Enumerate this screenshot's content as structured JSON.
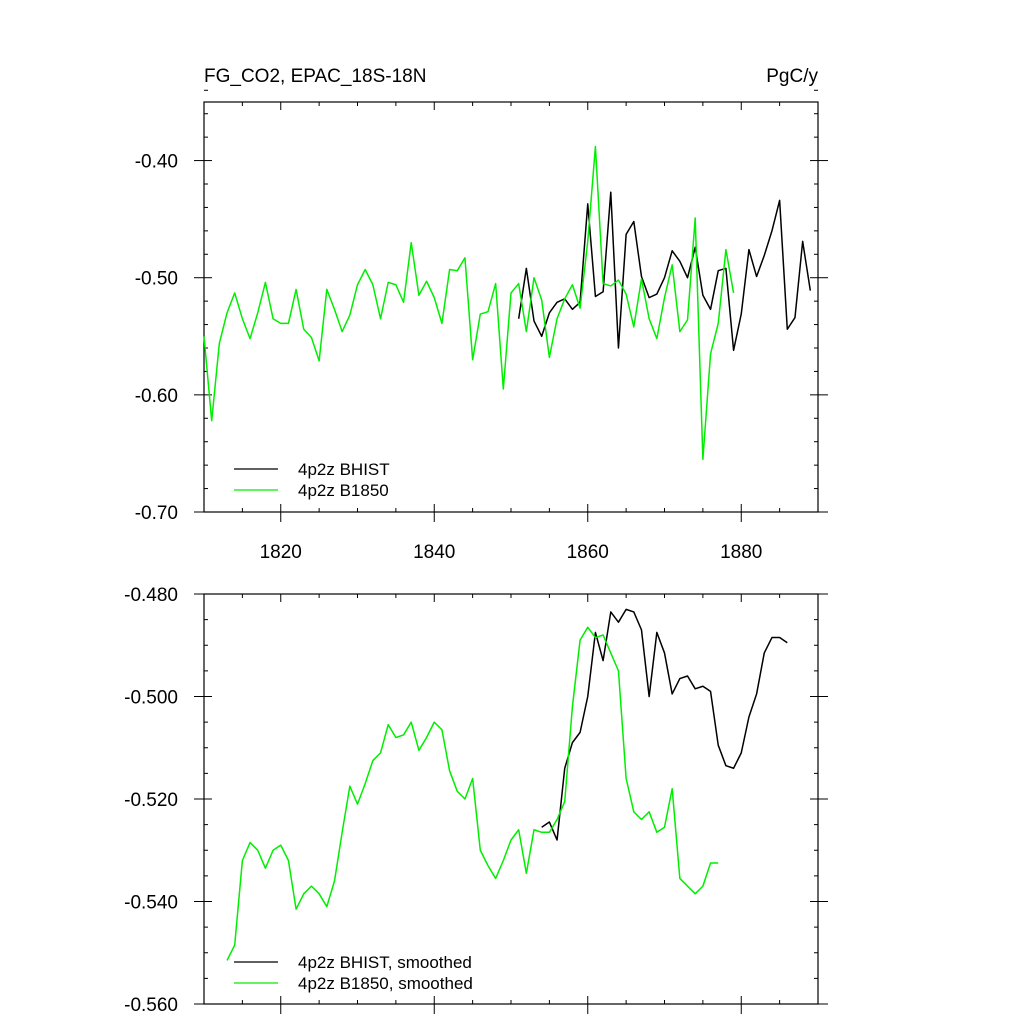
{
  "chart_data": [
    {
      "type": "line",
      "title_left": "FG_CO2, EPAC_18S-18N",
      "title_right": "PgC/y",
      "xlabel": "",
      "ylabel": "",
      "xlim": [
        1810,
        1890
      ],
      "ylim": [
        -0.7,
        -0.35
      ],
      "xticks": [
        1820,
        1840,
        1860,
        1880
      ],
      "xtick_labels": [
        "1820",
        "1840",
        "1860",
        "1880"
      ],
      "yticks": [
        -0.4,
        -0.5,
        -0.6,
        -0.7
      ],
      "ytick_labels": [
        "-0.40",
        "-0.50",
        "-0.60",
        "-0.70"
      ],
      "grid": false,
      "legend_position": "bottom-left",
      "series": [
        {
          "name": "4p2z BHIST",
          "color": "#000000",
          "x": [
            1851,
            1852,
            1853,
            1854,
            1855,
            1856,
            1857,
            1858,
            1859,
            1860,
            1861,
            1862,
            1863,
            1864,
            1865,
            1866,
            1867,
            1868,
            1869,
            1870,
            1871,
            1872,
            1873,
            1874,
            1875,
            1876,
            1877,
            1878,
            1879,
            1880,
            1881,
            1882,
            1883,
            1884,
            1885,
            1886,
            1887,
            1888,
            1889
          ],
          "y": [
            -0.535,
            -0.492,
            -0.537,
            -0.55,
            -0.53,
            -0.521,
            -0.518,
            -0.527,
            -0.521,
            -0.437,
            -0.516,
            -0.512,
            -0.427,
            -0.56,
            -0.463,
            -0.452,
            -0.499,
            -0.517,
            -0.514,
            -0.5,
            -0.477,
            -0.486,
            -0.5,
            -0.474,
            -0.515,
            -0.527,
            -0.494,
            -0.492,
            -0.562,
            -0.531,
            -0.476,
            -0.499,
            -0.481,
            -0.46,
            -0.434,
            -0.544,
            -0.534,
            -0.469,
            -0.511
          ]
        },
        {
          "name": "4p2z B1850",
          "color": "#00ee00",
          "x": [
            1810,
            1811,
            1812,
            1813,
            1814,
            1815,
            1816,
            1817,
            1818,
            1819,
            1820,
            1821,
            1822,
            1823,
            1824,
            1825,
            1826,
            1827,
            1828,
            1829,
            1830,
            1831,
            1832,
            1833,
            1834,
            1835,
            1836,
            1837,
            1838,
            1839,
            1840,
            1841,
            1842,
            1843,
            1844,
            1845,
            1846,
            1847,
            1848,
            1849,
            1850,
            1851,
            1852,
            1853,
            1854,
            1855,
            1856,
            1857,
            1858,
            1859,
            1860,
            1861,
            1862,
            1863,
            1864,
            1865,
            1866,
            1867,
            1868,
            1869,
            1870,
            1871,
            1872,
            1873,
            1874,
            1875,
            1876,
            1877,
            1878,
            1879
          ],
          "y": [
            -0.55,
            -0.622,
            -0.556,
            -0.53,
            -0.513,
            -0.535,
            -0.552,
            -0.53,
            -0.504,
            -0.535,
            -0.539,
            -0.539,
            -0.51,
            -0.544,
            -0.551,
            -0.571,
            -0.51,
            -0.527,
            -0.546,
            -0.532,
            -0.506,
            -0.493,
            -0.506,
            -0.535,
            -0.504,
            -0.506,
            -0.521,
            -0.47,
            -0.515,
            -0.503,
            -0.517,
            -0.539,
            -0.493,
            -0.494,
            -0.483,
            -0.57,
            -0.531,
            -0.529,
            -0.505,
            -0.595,
            -0.513,
            -0.505,
            -0.546,
            -0.5,
            -0.519,
            -0.568,
            -0.535,
            -0.518,
            -0.506,
            -0.526,
            -0.469,
            -0.388,
            -0.505,
            -0.507,
            -0.502,
            -0.514,
            -0.542,
            -0.501,
            -0.535,
            -0.552,
            -0.517,
            -0.489,
            -0.546,
            -0.536,
            -0.449,
            -0.655,
            -0.565,
            -0.539,
            -0.476,
            -0.513
          ]
        }
      ]
    },
    {
      "type": "line",
      "title": "",
      "xlabel": "",
      "ylabel": "",
      "xlim": [
        1810,
        1890
      ],
      "ylim": [
        -0.56,
        -0.48
      ],
      "xticks": [
        1820,
        1840,
        1860,
        1880
      ],
      "yticks": [
        -0.48,
        -0.5,
        -0.52,
        -0.54,
        -0.56
      ],
      "ytick_labels": [
        "-0.480",
        "-0.500",
        "-0.520",
        "-0.540",
        "-0.560"
      ],
      "grid": false,
      "legend_position": "bottom-left",
      "series": [
        {
          "name": "4p2z BHIST, smoothed",
          "color": "#000000",
          "x": [
            1854,
            1855,
            1856,
            1857,
            1858,
            1859,
            1860,
            1861,
            1862,
            1863,
            1864,
            1865,
            1866,
            1867,
            1868,
            1869,
            1870,
            1871,
            1872,
            1873,
            1874,
            1875,
            1876,
            1877,
            1878,
            1879,
            1880,
            1881,
            1882,
            1883,
            1884,
            1885,
            1886
          ],
          "y": [
            -0.5255,
            -0.5245,
            -0.528,
            -0.514,
            -0.509,
            -0.507,
            -0.5,
            -0.4875,
            -0.493,
            -0.4835,
            -0.4855,
            -0.483,
            -0.4835,
            -0.487,
            -0.5,
            -0.4875,
            -0.4915,
            -0.4995,
            -0.4965,
            -0.496,
            -0.4985,
            -0.498,
            -0.499,
            -0.5095,
            -0.5135,
            -0.514,
            -0.511,
            -0.504,
            -0.4995,
            -0.4915,
            -0.4885,
            -0.4885,
            -0.4895
          ]
        },
        {
          "name": "4p2z B1850, smoothed",
          "color": "#00ee00",
          "x": [
            1813,
            1814,
            1815,
            1816,
            1817,
            1818,
            1819,
            1820,
            1821,
            1822,
            1823,
            1824,
            1825,
            1826,
            1827,
            1828,
            1829,
            1830,
            1831,
            1832,
            1833,
            1834,
            1835,
            1836,
            1837,
            1838,
            1839,
            1840,
            1841,
            1842,
            1843,
            1844,
            1845,
            1846,
            1847,
            1848,
            1849,
            1850,
            1851,
            1852,
            1853,
            1854,
            1855,
            1856,
            1857,
            1858,
            1859,
            1860,
            1861,
            1862,
            1863,
            1864,
            1865,
            1866,
            1867,
            1868,
            1869,
            1870,
            1871,
            1872,
            1873,
            1874,
            1875,
            1876,
            1877
          ],
          "y": [
            -0.5515,
            -0.5485,
            -0.532,
            -0.5285,
            -0.53,
            -0.5335,
            -0.53,
            -0.529,
            -0.532,
            -0.5415,
            -0.5385,
            -0.537,
            -0.5385,
            -0.541,
            -0.536,
            -0.5265,
            -0.5175,
            -0.521,
            -0.517,
            -0.5125,
            -0.511,
            -0.5055,
            -0.508,
            -0.5075,
            -0.505,
            -0.5105,
            -0.508,
            -0.505,
            -0.5065,
            -0.5145,
            -0.5185,
            -0.52,
            -0.516,
            -0.53,
            -0.533,
            -0.5355,
            -0.532,
            -0.528,
            -0.526,
            -0.5345,
            -0.526,
            -0.5265,
            -0.5265,
            -0.524,
            -0.5205,
            -0.502,
            -0.489,
            -0.4865,
            -0.4885,
            -0.488,
            -0.4915,
            -0.495,
            -0.516,
            -0.5225,
            -0.524,
            -0.5225,
            -0.5265,
            -0.5255,
            -0.518,
            -0.5355,
            -0.537,
            -0.5385,
            -0.537,
            -0.5325,
            -0.5325
          ]
        }
      ]
    }
  ]
}
